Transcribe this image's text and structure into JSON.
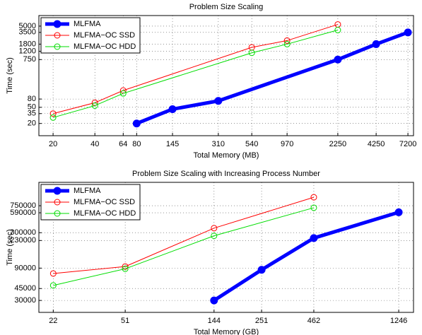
{
  "chart_data": [
    {
      "type": "line",
      "title": "Problem Size Scaling",
      "xlabel": "Total Memory (MB)",
      "ylabel": "Time (sec)",
      "xscale": "log",
      "yscale": "log",
      "grid": true,
      "legend": "upper left",
      "xlim": [
        15.8,
        7900
      ],
      "ylim": [
        10,
        9100
      ],
      "xticks": [
        20,
        40,
        64,
        80,
        145,
        310,
        540,
        970,
        2250,
        4250,
        7200
      ],
      "yticks": [
        20,
        35,
        50,
        80,
        750,
        1200,
        1800,
        3500,
        5000
      ],
      "series": [
        {
          "name": "MLFMA",
          "color": "#0000ff",
          "x": [
            80,
            145,
            310,
            2250,
            4250,
            7200
          ],
          "values": [
            20,
            45,
            72,
            750,
            1800,
            3500
          ]
        },
        {
          "name": "MLFMA−OC SSD",
          "color": "#ff0000",
          "x": [
            20,
            40,
            64,
            540,
            970,
            2250
          ],
          "values": [
            35,
            65,
            130,
            1500,
            2200,
            5500
          ]
        },
        {
          "name": "MLFMA−OC HDD",
          "color": "#00dd00",
          "x": [
            20,
            40,
            64,
            540,
            970,
            2250
          ],
          "values": [
            28,
            55,
            110,
            1100,
            1800,
            4000
          ]
        }
      ]
    },
    {
      "type": "line",
      "title": "Problem Size Scaling with Increasing Process Number",
      "xlabel": "Total Memory (GB)",
      "ylabel": "Time (sec)",
      "xscale": "log",
      "yscale": "log",
      "grid": true,
      "legend": "upper left",
      "xlim": [
        18.6,
        1481
      ],
      "ylim": [
        20000,
        1660000
      ],
      "xticks": [
        22,
        51,
        144,
        251,
        462,
        1246
      ],
      "yticks": [
        30000,
        45000,
        90000,
        230000,
        300000,
        590000,
        750000
      ],
      "series": [
        {
          "name": "MLFMA",
          "color": "#0000ff",
          "x": [
            144,
            251,
            462,
            1246
          ],
          "values": [
            30000,
            85000,
            250000,
            600000
          ]
        },
        {
          "name": "MLFMA−OC SSD",
          "color": "#ff0000",
          "x": [
            22,
            51,
            144,
            462
          ],
          "values": [
            75000,
            95000,
            350000,
            1000000
          ]
        },
        {
          "name": "MLFMA−OC HDD",
          "color": "#00dd00",
          "x": [
            22,
            51,
            144,
            462
          ],
          "values": [
            50000,
            88000,
            270000,
            700000
          ]
        }
      ]
    }
  ]
}
